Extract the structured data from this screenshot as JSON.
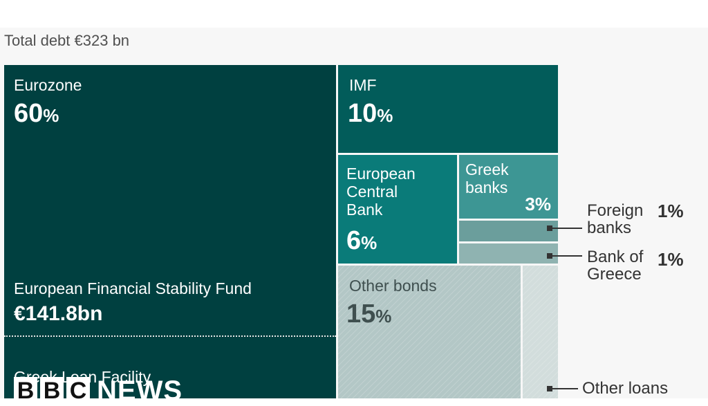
{
  "subtitle": "Total debt €323 bn",
  "colors": {
    "eurozone": "#004040",
    "imf": "#025c5a",
    "ecb": "#0a7b79",
    "greek_banks": "#3d9694",
    "foreign_banks": "#6b9e9c",
    "bank_of_greece": "#8fb3b1",
    "other_bonds": "#b3c7c6",
    "other_loans": "#d2dddc"
  },
  "chart_data": {
    "type": "treemap",
    "title": "Total debt €323 bn",
    "total": "€323 bn",
    "items": [
      {
        "name": "Eurozone",
        "value": 60,
        "label": "60",
        "unit": "%",
        "sub": [
          {
            "name": "European Financial Stability Fund",
            "amount": "€141.8bn"
          },
          {
            "name": "Greek Loan Facility"
          }
        ]
      },
      {
        "name": "IMF",
        "value": 10,
        "label": "10",
        "unit": "%"
      },
      {
        "name": "European Central Bank",
        "display": "European\nCentral\nBank",
        "value": 6,
        "label": "6",
        "unit": "%"
      },
      {
        "name": "Greek banks",
        "display": "Greek\nbanks",
        "value": 3,
        "label": "3%"
      },
      {
        "name": "Foreign banks",
        "display": "Foreign\nbanks",
        "value": 1,
        "label": "1%"
      },
      {
        "name": "Bank of Greece",
        "display": "Bank of\nGreece",
        "value": 1,
        "label": "1%"
      },
      {
        "name": "Other bonds",
        "value": 15,
        "label": "15",
        "unit": "%"
      },
      {
        "name": "Other loans"
      }
    ]
  },
  "logo": {
    "b1": "B",
    "b2": "B",
    "c": "C",
    "news": "NEWS"
  }
}
